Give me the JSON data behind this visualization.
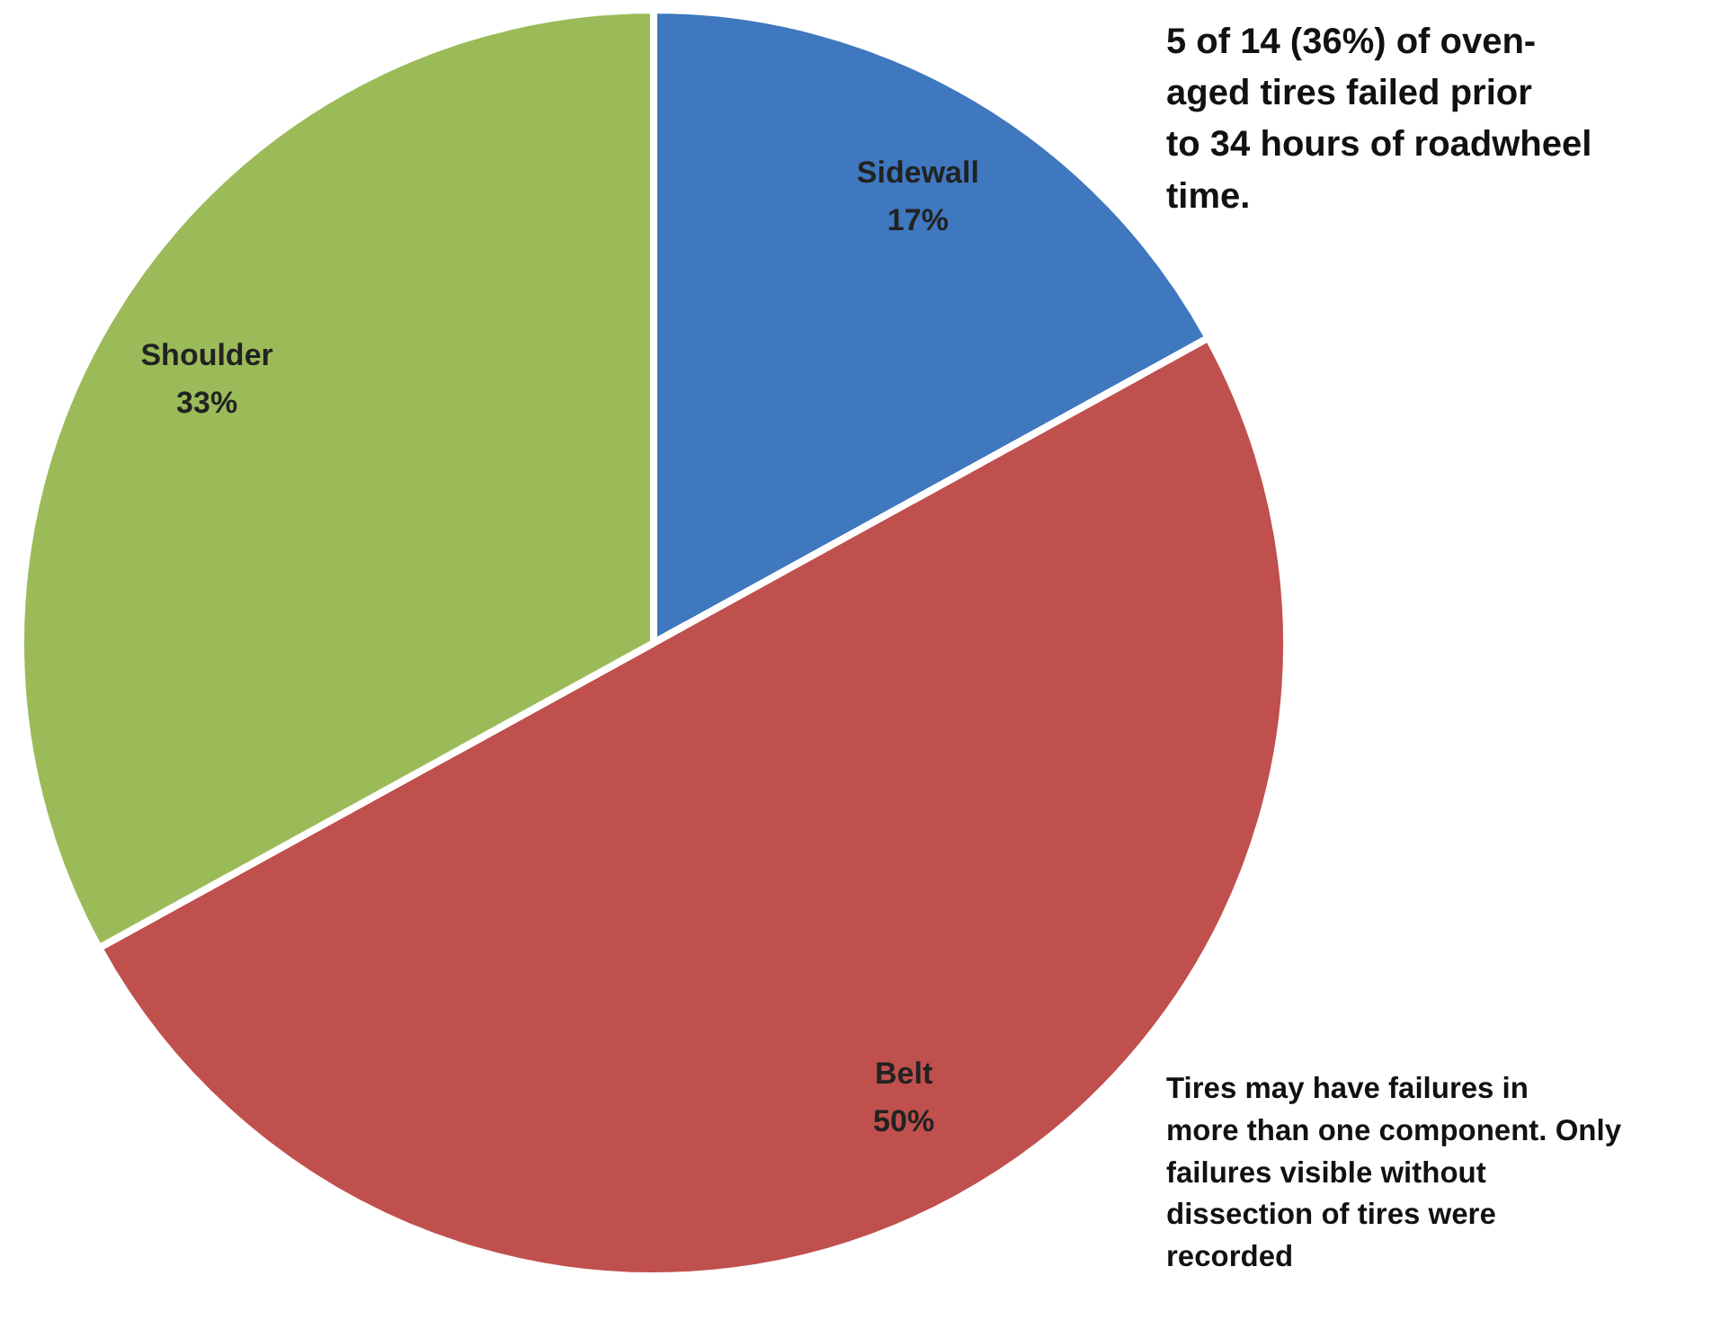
{
  "chart_data": {
    "type": "pie",
    "categories": [
      "Sidewall",
      "Belt",
      "Shoulder"
    ],
    "values": [
      17,
      50,
      33
    ],
    "colors": [
      "#3f78bf",
      "#c0504d",
      "#9bbb59"
    ],
    "value_labels": [
      "17%",
      "50%",
      "33%"
    ],
    "legend": false,
    "annotations": [
      "5 of 14 (36%) of oven-aged tires failed prior to 34 hours of roadwheel time.",
      "Tires may have failures in more than one component. Only failures visible without dissection of tires were recorded"
    ]
  }
}
